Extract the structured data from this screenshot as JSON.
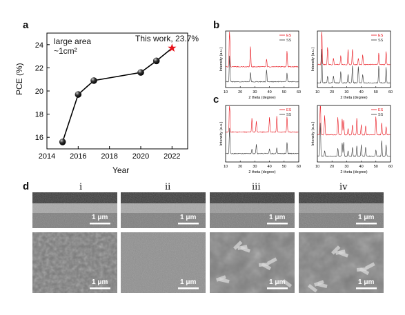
{
  "labels": {
    "a": "a",
    "b": "b",
    "c": "c",
    "d": "d"
  },
  "panel_a": {
    "note1": "large area",
    "note2": "~1cm²",
    "highlight": "This work, 23.7%",
    "xlabel": "Year",
    "ylabel": "PCE (%)"
  },
  "chart_data": [
    {
      "panel": "a",
      "type": "line",
      "xlabel": "Year",
      "ylabel": "PCE (%)",
      "xlim": [
        2014,
        2023
      ],
      "ylim": [
        15,
        25
      ],
      "xticks": [
        "2014",
        "2016",
        "2018",
        "2020",
        "2022"
      ],
      "yticks": [
        "16",
        "18",
        "20",
        "22",
        "24"
      ],
      "x": [
        2015,
        2016,
        2017,
        2020,
        2021,
        2022
      ],
      "y": [
        15.6,
        19.7,
        20.9,
        21.6,
        22.6,
        23.7
      ],
      "highlight_point": {
        "x": 2022,
        "y": 23.7,
        "label": "This work, 23.7%",
        "color": "#e8141c"
      },
      "annotation": "large area ~1cm²"
    },
    {
      "panel": "b-left",
      "type": "line",
      "xlabel": "2 theta (degree)",
      "ylabel": "Intensity (a.u.)",
      "xlim": [
        10,
        60
      ],
      "xticks": [
        "10",
        "20",
        "30",
        "40",
        "50",
        "60"
      ],
      "legend": [
        "ES",
        "SS"
      ],
      "colors": [
        "#e8141c",
        "#333333"
      ],
      "peaks": [
        12.7,
        27,
        38,
        52
      ]
    },
    {
      "panel": "b-right",
      "type": "line",
      "xlabel": "2 theta (degree)",
      "ylabel": "Intensity (a.u.)",
      "xlim": [
        10,
        60
      ],
      "xticks": [
        "10",
        "20",
        "30",
        "40",
        "50",
        "60"
      ],
      "legend": [
        "ES",
        "SS"
      ],
      "colors": [
        "#e8141c",
        "#333333"
      ],
      "peaks": [
        13,
        17,
        21,
        26,
        31,
        34,
        38,
        41,
        52,
        57
      ]
    },
    {
      "panel": "c-left",
      "type": "line",
      "xlabel": "2 theta (degree)",
      "ylabel": "Intensity (a.u.)",
      "xlim": [
        10,
        60
      ],
      "xticks": [
        "10",
        "20",
        "30",
        "40",
        "50",
        "60"
      ],
      "legend": [
        "ES",
        "SS"
      ],
      "colors": [
        "#e8141c",
        "#333333"
      ],
      "peaks": [
        12.7,
        28,
        31,
        40,
        45,
        52
      ]
    },
    {
      "panel": "c-right",
      "type": "line",
      "xlabel": "2 theta (degree)",
      "ylabel": "Intensity (a.u.)",
      "xlim": [
        10,
        60
      ],
      "xticks": [
        "10",
        "20",
        "30",
        "40",
        "50",
        "60"
      ],
      "legend": [
        "ES",
        "SS"
      ],
      "colors": [
        "#e8141c",
        "#333333"
      ],
      "peaks": [
        12,
        15,
        24,
        27,
        28,
        31,
        34,
        37,
        40,
        43,
        50,
        54,
        57
      ]
    }
  ],
  "panel_d": {
    "columns": [
      "i",
      "ii",
      "iii",
      "iv"
    ],
    "scale": "1 μm"
  }
}
